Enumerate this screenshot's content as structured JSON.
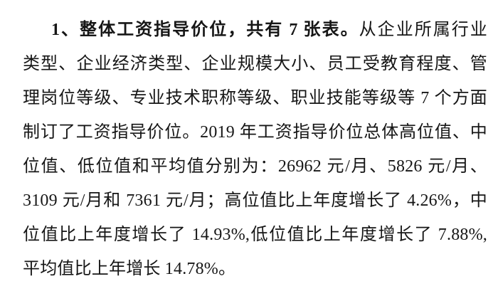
{
  "meta": {
    "background_color": "#ffffff",
    "text_color": "#161616"
  },
  "paragraph": {
    "full_text": "1、整体工资指导价位，共有 7 张表。从企业所属行业类型、企业经济类型、企业规模大小、员工受教育程度、管理岗位等级、专业技术职称等级、职业技能等级等 7 个方面制订了工资指导价位。2019 年工资指导价位总体高位值、中位值、低位值和平均值分别为：26962 元/月、5826 元/月、3109 元/月和 7361 元/月；高位值比上年度增长了 4.26%，中位值比上年度增长了 14.93%,低位值比上年度增长了 7.88%,平均值比上年增长 14.78%。",
    "lines": [
      {
        "indent": true,
        "last": false,
        "segments": [
          {
            "text": "1、整体工资指导价位，共有 7 张表。",
            "bold": true
          },
          {
            "text": "从企业所属行业",
            "bold": false
          }
        ]
      },
      {
        "indent": false,
        "last": false,
        "segments": [
          {
            "text": "类型、企业经济类型、企业规模大小、员工受教育程度、管",
            "bold": false
          }
        ]
      },
      {
        "indent": false,
        "last": false,
        "segments": [
          {
            "text": "理岗位等级、专业技术职称等级、职业技能等级等 7 个方面",
            "bold": false
          }
        ]
      },
      {
        "indent": false,
        "last": false,
        "segments": [
          {
            "text": "制订了工资指导价位。2019 年工资指导价位总体高位值、中",
            "bold": false
          }
        ]
      },
      {
        "indent": false,
        "last": false,
        "segments": [
          {
            "text": "位值、低位值和平均值分别为：26962 元/月、5826 元/月、",
            "bold": false
          }
        ]
      },
      {
        "indent": false,
        "last": false,
        "segments": [
          {
            "text": "3109 元/月和 7361 元/月；高位值比上年度增长了 4.26%，中",
            "bold": false
          }
        ]
      },
      {
        "indent": false,
        "last": false,
        "segments": [
          {
            "text": "位值比上年度增长了 14.93%,低位值比上年度增长了 7.88%,",
            "bold": false
          }
        ]
      },
      {
        "indent": false,
        "last": true,
        "segments": [
          {
            "text": "平均值比上年增长 14.78%。",
            "bold": false
          }
        ]
      }
    ]
  }
}
